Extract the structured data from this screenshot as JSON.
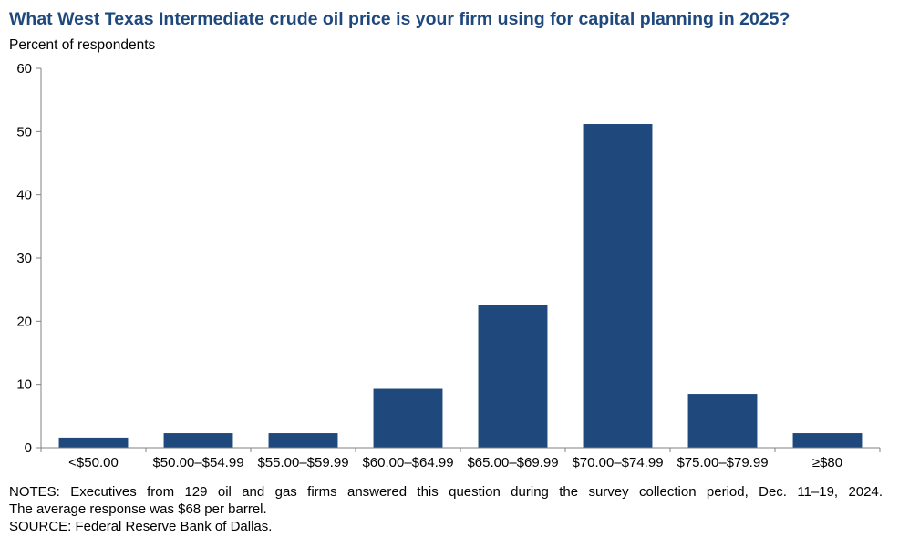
{
  "chart_data": {
    "type": "bar",
    "title": "What West Texas Intermediate crude oil price is your firm using for capital planning in 2025?",
    "ylabel": "Percent of respondents",
    "xlabel": "",
    "categories": [
      "<$50.00",
      "$50.00–$54.99",
      "$55.00–$59.99",
      "$60.00–$64.99",
      "$65.00–$69.99",
      "$70.00–$74.99",
      "$75.00–$79.99",
      "≥$80"
    ],
    "values": [
      1.6,
      2.3,
      2.3,
      9.3,
      22.5,
      51.2,
      8.5,
      2.3
    ],
    "ylim": [
      0,
      60
    ],
    "yticks": [
      "0",
      "10",
      "20",
      "30",
      "40",
      "50",
      "60"
    ],
    "grid": false,
    "legend": "none",
    "bar_color": "#1f497d"
  },
  "notes": {
    "line1": "NOTES: Executives from 129 oil and gas firms answered this question during the survey collection period, Dec. 11–19, 2024.",
    "line2": "The average response was $68 per barrel.",
    "line3": "SOURCE: Federal Reserve Bank of Dallas."
  }
}
